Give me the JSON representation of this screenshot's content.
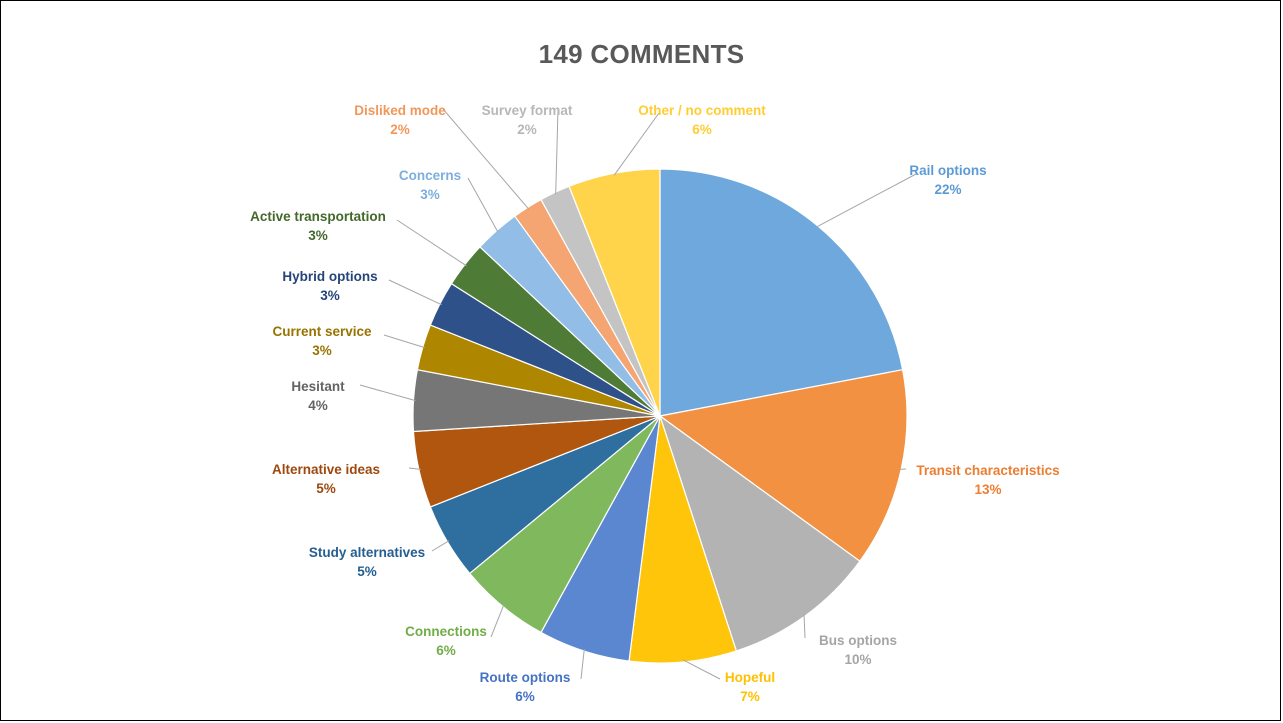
{
  "chart_data": {
    "type": "pie",
    "title": "149 COMMENTS",
    "start_angle_deg": 0,
    "direction": "clockwise",
    "slices": [
      {
        "label": "Rail options",
        "pct_label": "22%",
        "value": 22,
        "color": "#6FA8DC",
        "label_color": "#5B9BD5"
      },
      {
        "label": "Transit characteristics",
        "pct_label": "13%",
        "value": 13,
        "color": "#F29141",
        "label_color": "#ED7D31"
      },
      {
        "label": "Bus options",
        "pct_label": "10%",
        "value": 10,
        "color": "#B3B3B3",
        "label_color": "#A5A5A5"
      },
      {
        "label": "Hopeful",
        "pct_label": "7%",
        "value": 7,
        "color": "#FFC50A",
        "label_color": "#FFC000"
      },
      {
        "label": "Route options",
        "pct_label": "6%",
        "value": 6,
        "color": "#5A87D0",
        "label_color": "#4472C4"
      },
      {
        "label": "Connections",
        "pct_label": "6%",
        "value": 6,
        "color": "#80B85E",
        "label_color": "#70AD47"
      },
      {
        "label": "Study alternatives",
        "pct_label": "5%",
        "value": 5,
        "color": "#2F6F9F",
        "label_color": "#255E91"
      },
      {
        "label": "Alternative ideas",
        "pct_label": "5%",
        "value": 5,
        "color": "#B0560F",
        "label_color": "#9E480E"
      },
      {
        "label": "Hesitant",
        "pct_label": "4%",
        "value": 4,
        "color": "#767676",
        "label_color": "#636363"
      },
      {
        "label": "Current service",
        "pct_label": "3%",
        "value": 3,
        "color": "#AE8600",
        "label_color": "#997300"
      },
      {
        "label": "Hybrid options",
        "pct_label": "3%",
        "value": 3,
        "color": "#2E5189",
        "label_color": "#264478"
      },
      {
        "label": "Active transportation",
        "pct_label": "3%",
        "value": 3,
        "color": "#4E7B35",
        "label_color": "#43682B"
      },
      {
        "label": "Concerns",
        "pct_label": "3%",
        "value": 3,
        "color": "#92BDE6",
        "label_color": "#7CAFDD"
      },
      {
        "label": "Disliked mode",
        "pct_label": "2%",
        "value": 2,
        "color": "#F4A571",
        "label_color": "#F1975A"
      },
      {
        "label": "Survey format",
        "pct_label": "2%",
        "value": 2,
        "color": "#C4C4C4",
        "label_color": "#B7B7B7"
      },
      {
        "label": "Other / no comment",
        "pct_label": "6%",
        "value": 6,
        "color": "#FFD44A",
        "label_color": "#FFCD33"
      }
    ]
  }
}
